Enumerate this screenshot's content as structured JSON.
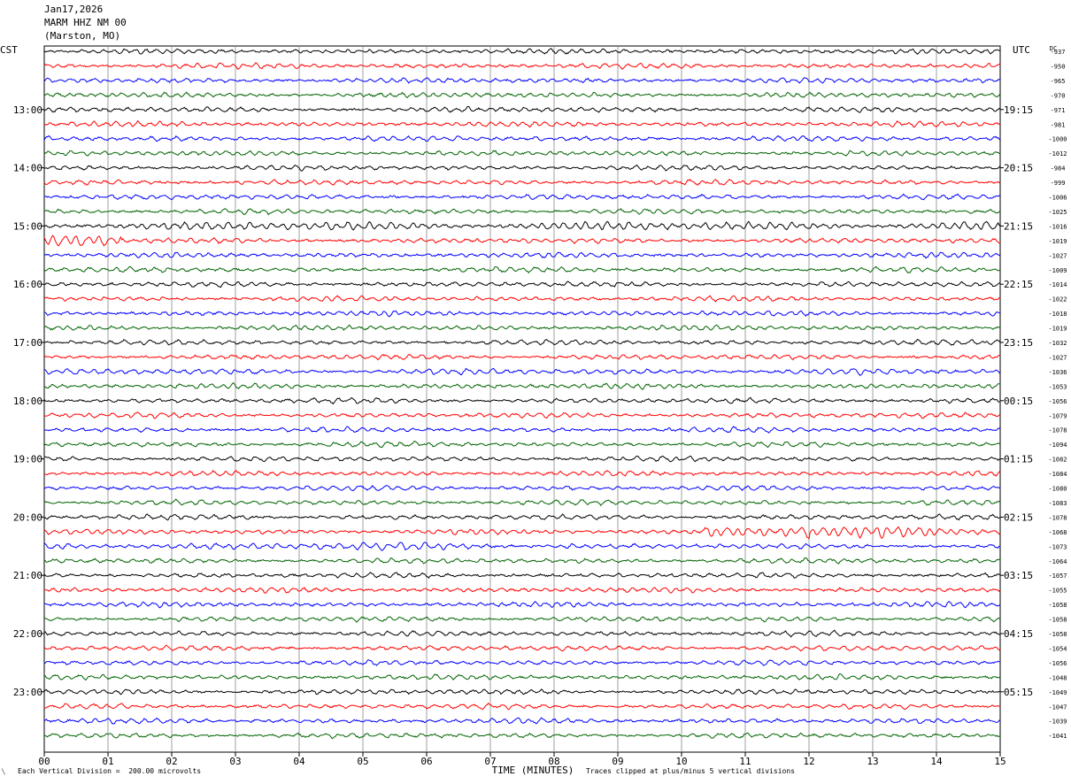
{
  "header": {
    "date": "Jan17,2026",
    "station": "MARM HHZ NM 00",
    "location": "(Marston, MO)"
  },
  "chart_data": {
    "type": "line",
    "title": "",
    "xlabel": "TIME (MINUTES)",
    "left_zone": "CST",
    "right_zone": "UTC",
    "dc_label": "DC",
    "xlim": [
      0,
      15
    ],
    "x_ticks": [
      "00",
      "01",
      "02",
      "03",
      "04",
      "05",
      "06",
      "07",
      "08",
      "09",
      "10",
      "11",
      "12",
      "13",
      "14",
      "15"
    ],
    "trace_colors": [
      "#000000",
      "#ff0000",
      "#0000ff",
      "#006400"
    ],
    "left_hour_labels": [
      "13:00",
      "14:00",
      "15:00",
      "16:00",
      "17:00",
      "18:00",
      "19:00",
      "20:00",
      "21:00",
      "22:00",
      "23:00"
    ],
    "right_hour_labels": [
      "19:15",
      "20:15",
      "21:15",
      "22:15",
      "23:15",
      "00:15",
      "01:15",
      "02:15",
      "03:15",
      "04:15",
      "05:15"
    ],
    "dc_offsets": [
      "-937",
      "-950",
      "-965",
      "-970",
      "-971",
      "-981",
      "-1000",
      "-1012",
      "-984",
      "-999",
      "-1006",
      "-1025",
      "-1016",
      "-1019",
      "-1027",
      "-1009",
      "-1014",
      "-1022",
      "-1018",
      "-1019",
      "-1032",
      "-1027",
      "-1036",
      "-1053",
      "-1056",
      "-1079",
      "-1078",
      "-1094",
      "-1082",
      "-1084",
      "-1080",
      "-1083",
      "-1078",
      "-1068",
      "-1073",
      "-1064",
      "-1057",
      "-1055",
      "-1058",
      "-1058",
      "-1058",
      "-1054",
      "-1056",
      "-1048",
      "-1049",
      "-1047",
      "-1039",
      "-1041"
    ],
    "scale_note": "Each Vertical Division =  200.00 microvolts",
    "clip_note": "Traces clipped at plus/minus 5 vertical divisions"
  }
}
